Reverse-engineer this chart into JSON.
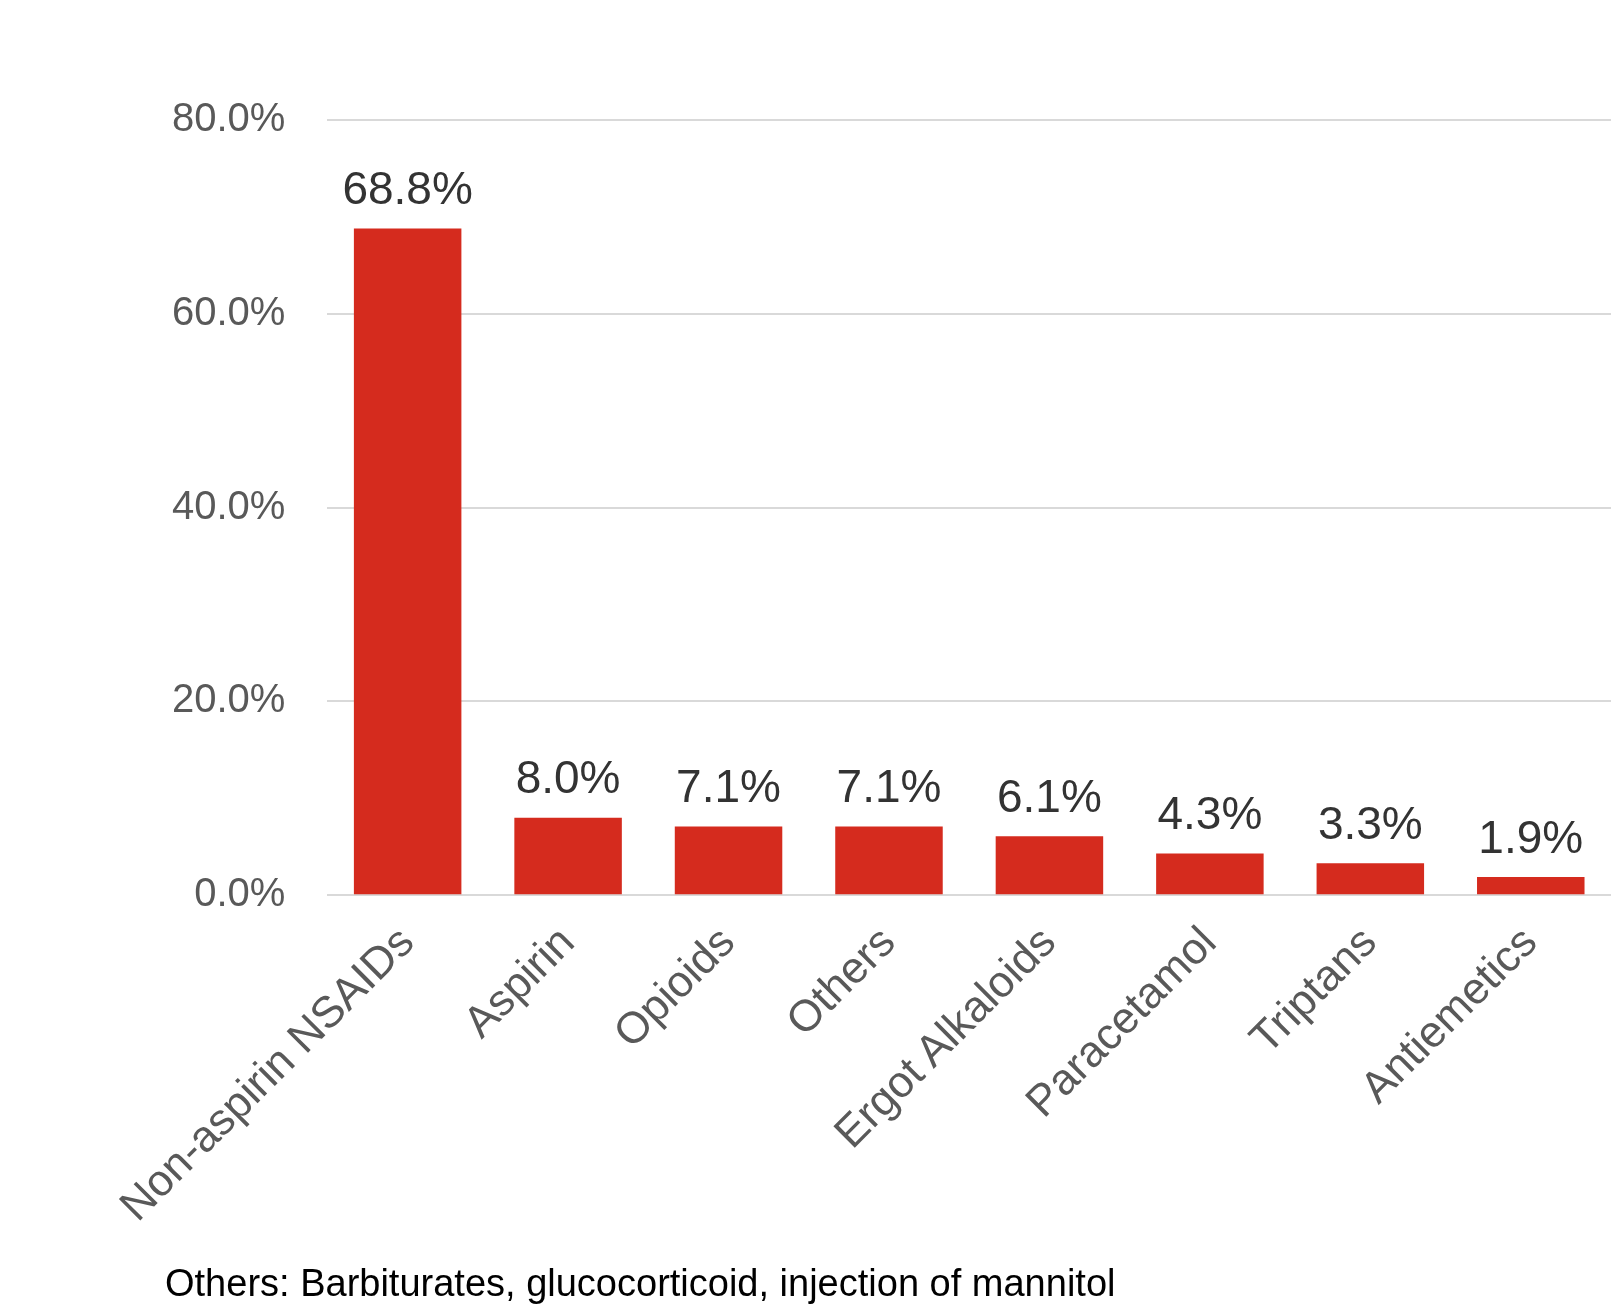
{
  "chart_data": {
    "type": "bar",
    "categories": [
      "Non-aspirin NSAIDs",
      "Aspirin",
      "Opioids",
      "Others",
      "Ergot Alkaloids",
      "Paracetamol",
      "Triptans",
      "Antiemetics"
    ],
    "values": [
      68.8,
      8.0,
      7.1,
      7.1,
      6.1,
      4.3,
      3.3,
      1.9
    ],
    "value_labels": [
      "68.8%",
      "8.0%",
      "7.1%",
      "7.1%",
      "6.1%",
      "4.3%",
      "3.3%",
      "1.9%"
    ],
    "color": "#d52b1e",
    "ylim": [
      0,
      80
    ],
    "yticks": [
      {
        "value": 0,
        "label": "0.0%"
      },
      {
        "value": 20,
        "label": "20.0%"
      },
      {
        "value": 40,
        "label": "40.0%"
      },
      {
        "value": 60,
        "label": "60.0%"
      },
      {
        "value": 80,
        "label": "80.0%"
      }
    ],
    "grid": "y",
    "legend": false,
    "annotations": [
      "Others: Barbiturates, glucocorticoid, injection of mannitol"
    ]
  }
}
